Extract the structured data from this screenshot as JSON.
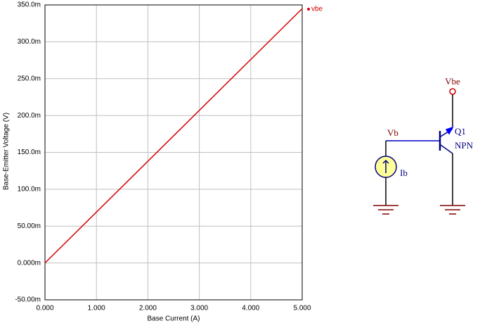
{
  "chart_data": {
    "type": "line",
    "x_label": "Base Current (A)",
    "y_label": "Base-Emitter Voltage (V)",
    "x": [
      0,
      5
    ],
    "series": [
      {
        "name": "vbe",
        "color": "#d40000",
        "values": [
          0,
          0.345
        ]
      }
    ],
    "xlim": [
      0,
      5
    ],
    "xticks": [
      {
        "value": 0,
        "label": "0.000"
      },
      {
        "value": 1,
        "label": "1.000"
      },
      {
        "value": 2,
        "label": "2.000"
      },
      {
        "value": 3,
        "label": "3.000"
      },
      {
        "value": 4,
        "label": "4.000"
      },
      {
        "value": 5,
        "label": "5.000"
      }
    ],
    "ylim": [
      -0.05,
      0.35
    ],
    "yticks": [
      {
        "value": -0.05,
        "label": "-50.00m"
      },
      {
        "value": 0,
        "label": "0.000m"
      },
      {
        "value": 0.05,
        "label": "50.00m"
      },
      {
        "value": 0.1,
        "label": "100.0m"
      },
      {
        "value": 0.15,
        "label": "150.0m"
      },
      {
        "value": 0.2,
        "label": "200.0m"
      },
      {
        "value": 0.25,
        "label": "250.0m"
      },
      {
        "value": 0.3,
        "label": "300.0m"
      },
      {
        "value": 0.35,
        "label": "350.0m"
      }
    ],
    "grid": true,
    "legend": "top-right"
  },
  "schematic": {
    "labels": {
      "vbe": "Vbe",
      "vb": "Vb",
      "q1": "Q1",
      "npn": "NPN",
      "ib": "Ib"
    }
  }
}
